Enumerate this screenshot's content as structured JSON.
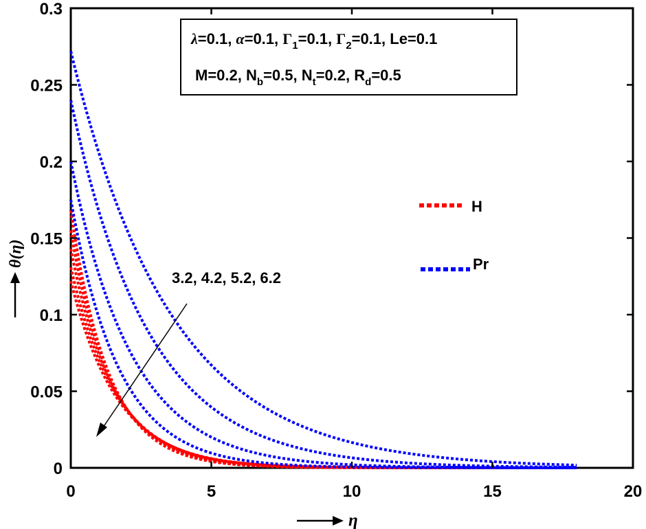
{
  "chart_data": {
    "type": "line",
    "xlabel": "η",
    "ylabel": "θ(η)",
    "xlim": [
      0,
      20
    ],
    "ylim": [
      0,
      0.3
    ],
    "x_ticks": [
      "0",
      "5",
      "10",
      "15",
      "20"
    ],
    "y_ticks": [
      "0",
      "0.05",
      "0.1",
      "0.15",
      "0.2",
      "0.25",
      "0.3"
    ],
    "grid": false,
    "legend": {
      "placement": "right",
      "entries": [
        {
          "label": "H",
          "color": "#ff0000",
          "style": "dotted"
        },
        {
          "label": "Pr",
          "color": "#0000ff",
          "style": "dotted"
        }
      ]
    },
    "parameter_box": {
      "line1": [
        {
          "symbol": "λ",
          "value": "=0.1, "
        },
        {
          "symbol": "α",
          "value": "=0.1, "
        },
        {
          "symbol": "Γ",
          "sub": "1",
          "value": "=0.1, "
        },
        {
          "symbol": "Γ",
          "sub": "2",
          "value": "=0.1, Le=0.1"
        }
      ],
      "line2": [
        {
          "text": "M=0.2, N",
          "sub": "b",
          "after": "=0.5, N"
        },
        {
          "sub": "t",
          "after": "=0.2, R"
        },
        {
          "sub": "d",
          "after": "=0.5"
        }
      ]
    },
    "annotation": "3.2, 4.2, 5.2, 6.2",
    "series": [
      {
        "group": "H",
        "color": "#ff0000",
        "theta0": 0.168,
        "decay": 0.74,
        "xmax": 18
      },
      {
        "group": "H",
        "color": "#ff0000",
        "theta0": 0.155,
        "decay": 0.7,
        "xmax": 18
      },
      {
        "group": "H",
        "color": "#ff0000",
        "theta0": 0.143,
        "decay": 0.66,
        "xmax": 18
      },
      {
        "group": "H",
        "color": "#ff0000",
        "theta0": 0.131,
        "decay": 0.62,
        "xmax": 18
      },
      {
        "group": "H",
        "color": "#ff0000",
        "theta0": 0.122,
        "decay": 0.6,
        "xmax": 18
      },
      {
        "group": "Pr",
        "color": "#0000ff",
        "theta0": 0.272,
        "decay": 0.28,
        "xmax": 18
      },
      {
        "group": "Pr",
        "color": "#0000ff",
        "theta0": 0.24,
        "decay": 0.36,
        "xmax": 18
      },
      {
        "group": "Pr",
        "color": "#0000ff",
        "theta0": 0.2,
        "decay": 0.46,
        "xmax": 18
      },
      {
        "group": "Pr",
        "color": "#0000ff",
        "theta0": 0.175,
        "decay": 0.58,
        "xmax": 18
      }
    ]
  }
}
